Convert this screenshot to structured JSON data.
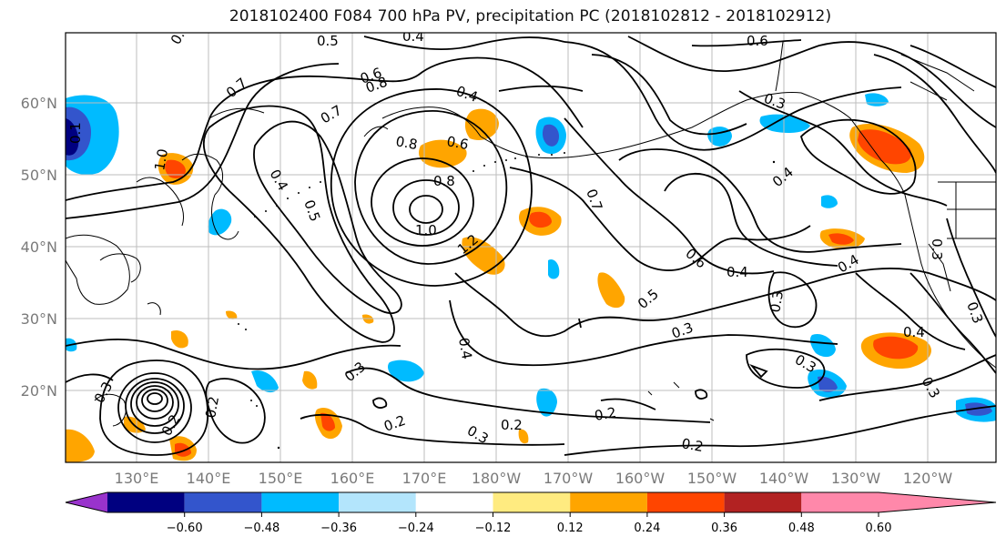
{
  "title": "2018102400 F084 700 hPa PV, precipitation PC (2018102812 - 2018102912)",
  "lat_labels": [
    "60°N",
    "50°N",
    "40°N",
    "30°N",
    "20°N"
  ],
  "lon_labels": [
    "130°E",
    "140°E",
    "150°E",
    "160°E",
    "170°E",
    "180°W",
    "170°W",
    "160°W",
    "150°W",
    "140°W",
    "130°W",
    "120°W"
  ],
  "colorbar": {
    "ticks": [
      "−0.60",
      "−0.48",
      "−0.36",
      "−0.24",
      "−0.12",
      "0.12",
      "0.24",
      "0.36",
      "0.48",
      "0.60"
    ],
    "colors": [
      "#9933cc",
      "#000080",
      "#3355cc",
      "#00bbff",
      "#b3e5fc",
      "#ffffff",
      "#ffeb80",
      "#ffa500",
      "#ff4500",
      "#b22222",
      "#ff88aa"
    ]
  },
  "contour_labels": [
    "0.5",
    "0.4",
    "0.7",
    "0.7",
    "0.7",
    "0.8",
    "0.6",
    "0.4",
    "1.0",
    "0.4",
    "0.6",
    "0.1",
    "0.8",
    "0.6",
    "0.8",
    "1.0",
    "1.2",
    "0.7",
    "0.5",
    "0.3",
    "0.4",
    "0.6",
    "0.4",
    "0.5",
    "0.4",
    "0.3",
    "0.3",
    "0.4",
    "0.3",
    "0.4",
    "0.3",
    "0.3",
    "0.2",
    "0.2",
    "0.3",
    "0.2",
    "0.2",
    "0.2",
    "0.3",
    "0.3",
    "0.2",
    "0.3"
  ]
}
